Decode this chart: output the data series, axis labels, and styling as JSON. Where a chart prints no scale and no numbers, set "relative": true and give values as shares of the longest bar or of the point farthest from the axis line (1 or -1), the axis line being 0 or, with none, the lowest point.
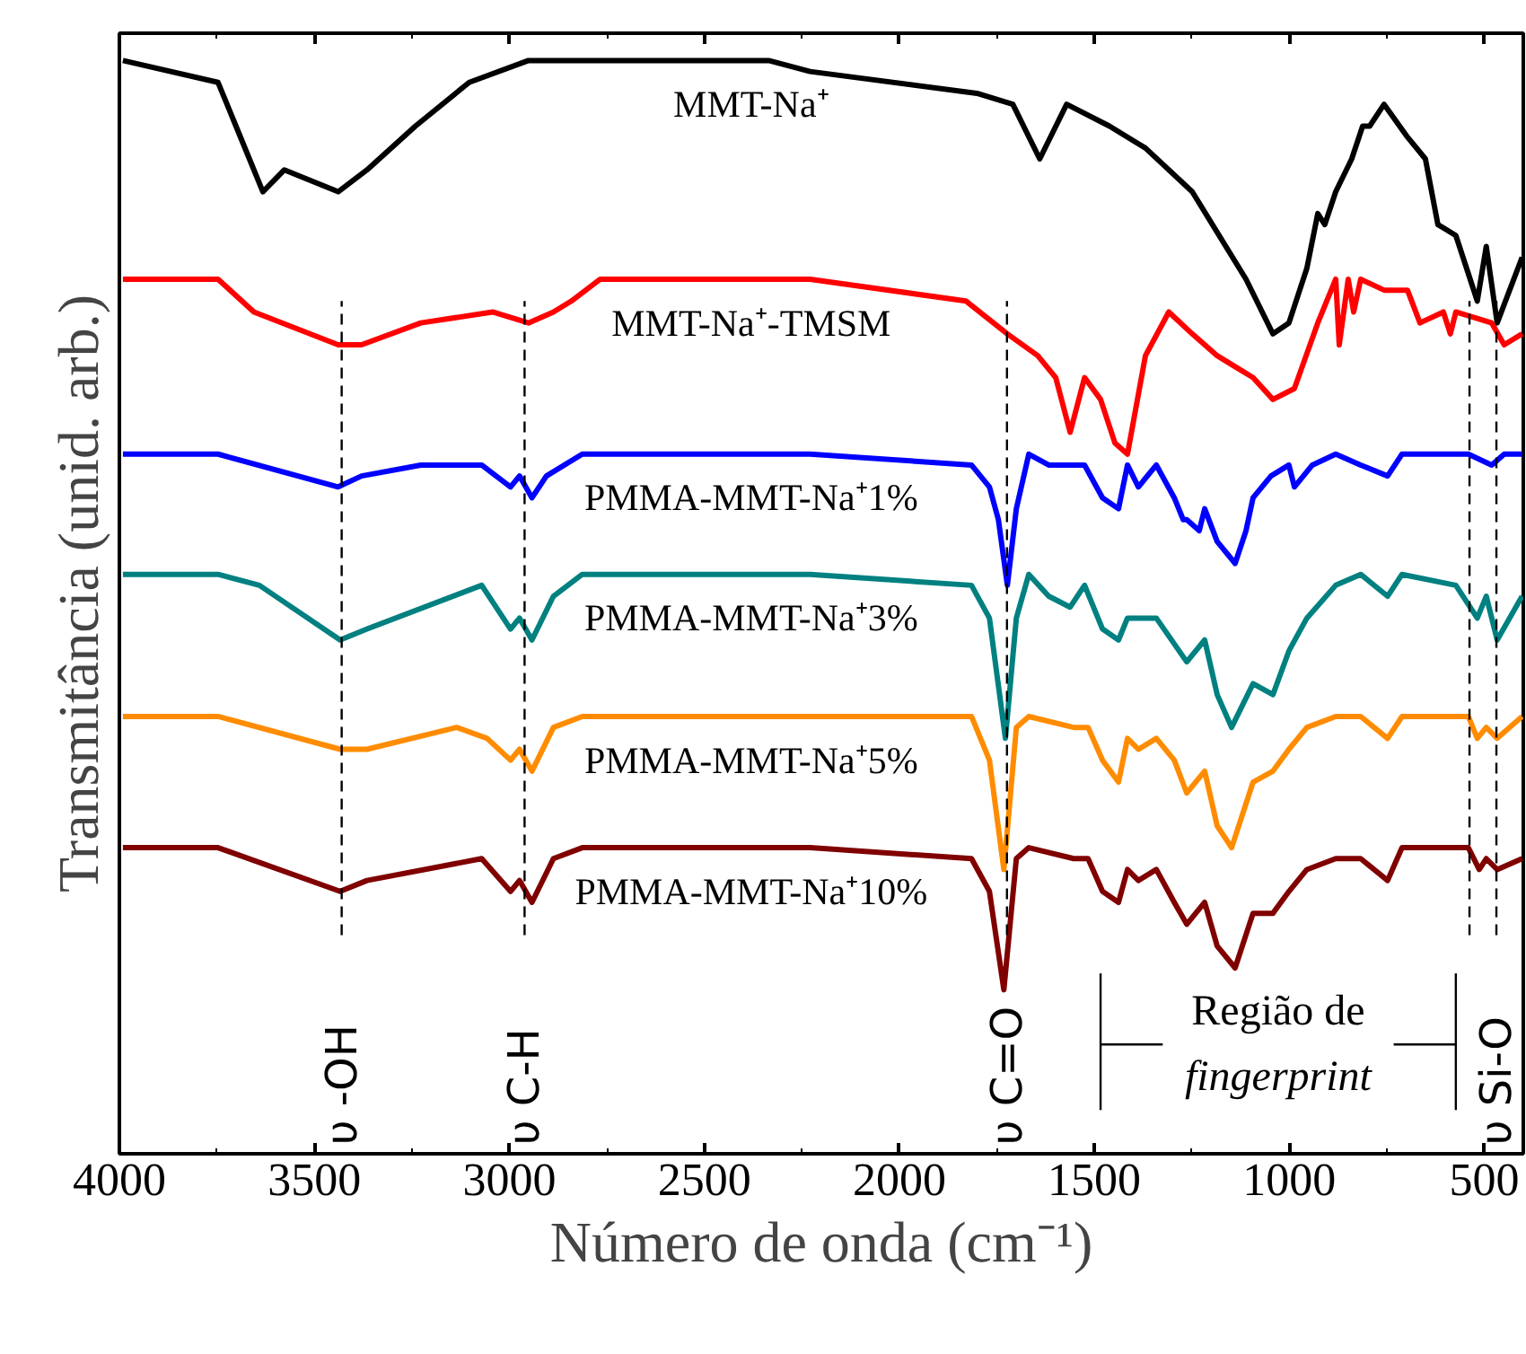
{
  "chart_data": {
    "type": "line",
    "relative": true,
    "xlabel": "Número de onda (cm⁻¹)",
    "ylabel": "Transmitância (unid. arb.)",
    "xlim": [
      4000,
      400
    ],
    "xticks": [
      4000,
      3500,
      3000,
      2500,
      2000,
      1500,
      1000,
      500
    ],
    "grid": false,
    "line_style": "solid",
    "marker": "none",
    "series": [
      {
        "name": "MMT-Na⁺",
        "color": "#000000",
        "x": [
          3991,
          3747,
          3701,
          3632,
          3577,
          3439,
          3365,
          3241,
          3103,
          2951,
          2643,
          2335,
          2229,
          1801,
          1709,
          1640,
          1571,
          1461,
          1369,
          1249,
          1111,
          1042,
          1001,
          955,
          927,
          909,
          881,
          840,
          812,
          794,
          757,
          697,
          651,
          619,
          573,
          518,
          495,
          467,
          403
        ],
        "values": [
          1.0,
          0.98,
          0.94,
          0.88,
          0.9,
          0.88,
          0.9,
          0.94,
          0.98,
          1.0,
          1.0,
          1.0,
          0.99,
          0.97,
          0.96,
          0.91,
          0.96,
          0.94,
          0.92,
          0.88,
          0.8,
          0.75,
          0.76,
          0.81,
          0.86,
          0.85,
          0.88,
          0.91,
          0.94,
          0.94,
          0.96,
          0.93,
          0.91,
          0.85,
          0.84,
          0.78,
          0.83,
          0.76,
          0.82
        ]
      },
      {
        "name": "MMT-Na⁺-TMSM",
        "color": "#ff0000",
        "x": [
          3991,
          3747,
          3655,
          3439,
          3379,
          3227,
          3043,
          2951,
          2887,
          2841,
          2767,
          2491,
          2229,
          1829,
          1723,
          1645,
          1599,
          1562,
          1525,
          1484,
          1447,
          1415,
          1369,
          1309,
          1249,
          1185,
          1139,
          1093,
          1042,
          987,
          927,
          881,
          872,
          849,
          835,
          817,
          757,
          697,
          665,
          605,
          587,
          573,
          481,
          449,
          403
        ],
        "values": [
          0.8,
          0.8,
          0.77,
          0.74,
          0.74,
          0.76,
          0.77,
          0.76,
          0.77,
          0.78,
          0.8,
          0.8,
          0.8,
          0.78,
          0.75,
          0.73,
          0.71,
          0.66,
          0.71,
          0.69,
          0.65,
          0.64,
          0.73,
          0.77,
          0.75,
          0.73,
          0.72,
          0.71,
          0.69,
          0.7,
          0.76,
          0.8,
          0.74,
          0.8,
          0.77,
          0.8,
          0.79,
          0.79,
          0.76,
          0.77,
          0.75,
          0.77,
          0.76,
          0.74,
          0.75
        ]
      },
      {
        "name": "PMMA-MMT-Na⁺1%",
        "color": "#0000ff",
        "x": [
          3991,
          3747,
          3439,
          3379,
          3227,
          3071,
          2997,
          2974,
          2942,
          2905,
          2813,
          2229,
          1815,
          1769,
          1746,
          1723,
          1700,
          1668,
          1617,
          1525,
          1479,
          1438,
          1415,
          1387,
          1341,
          1295,
          1272,
          1263,
          1231,
          1217,
          1185,
          1139,
          1111,
          1093,
          1047,
          1001,
          987,
          941,
          881,
          817,
          748,
          711,
          541,
          481,
          449,
          403
        ],
        "values": [
          0.64,
          0.64,
          0.61,
          0.62,
          0.63,
          0.63,
          0.61,
          0.62,
          0.6,
          0.62,
          0.64,
          0.64,
          0.63,
          0.61,
          0.58,
          0.52,
          0.59,
          0.64,
          0.63,
          0.63,
          0.6,
          0.59,
          0.63,
          0.61,
          0.63,
          0.6,
          0.58,
          0.58,
          0.57,
          0.59,
          0.56,
          0.54,
          0.57,
          0.6,
          0.62,
          0.63,
          0.61,
          0.63,
          0.64,
          0.63,
          0.62,
          0.64,
          0.64,
          0.63,
          0.64,
          0.64
        ]
      },
      {
        "name": "PMMA-MMT-Na⁺3%",
        "color": "#008080",
        "x": [
          3991,
          3747,
          3641,
          3434,
          3365,
          3071,
          2997,
          2974,
          2942,
          2887,
          2813,
          2229,
          1815,
          1769,
          1728,
          1700,
          1668,
          1617,
          1562,
          1525,
          1479,
          1438,
          1415,
          1341,
          1263,
          1217,
          1185,
          1148,
          1093,
          1042,
          1001,
          955,
          881,
          817,
          748,
          711,
          573,
          518,
          495,
          467,
          403
        ],
        "values": [
          0.53,
          0.53,
          0.52,
          0.47,
          0.48,
          0.52,
          0.48,
          0.49,
          0.47,
          0.51,
          0.53,
          0.53,
          0.52,
          0.49,
          0.38,
          0.49,
          0.53,
          0.51,
          0.5,
          0.52,
          0.48,
          0.47,
          0.49,
          0.49,
          0.45,
          0.47,
          0.42,
          0.39,
          0.43,
          0.42,
          0.46,
          0.49,
          0.52,
          0.53,
          0.51,
          0.53,
          0.52,
          0.49,
          0.51,
          0.47,
          0.51
        ]
      },
      {
        "name": "PMMA-MMT-Na⁺5%",
        "color": "#ff8c00",
        "x": [
          3991,
          3747,
          3434,
          3365,
          3135,
          3057,
          2997,
          2974,
          2942,
          2887,
          2813,
          2229,
          1815,
          1769,
          1732,
          1700,
          1668,
          1553,
          1516,
          1479,
          1438,
          1415,
          1387,
          1341,
          1295,
          1263,
          1217,
          1185,
          1148,
          1093,
          1042,
          1001,
          955,
          881,
          817,
          748,
          711,
          541,
          518,
          495,
          467,
          403
        ],
        "values": [
          0.4,
          0.4,
          0.37,
          0.37,
          0.39,
          0.38,
          0.36,
          0.37,
          0.35,
          0.39,
          0.4,
          0.4,
          0.4,
          0.36,
          0.26,
          0.39,
          0.4,
          0.39,
          0.39,
          0.36,
          0.34,
          0.38,
          0.37,
          0.38,
          0.36,
          0.33,
          0.35,
          0.3,
          0.28,
          0.34,
          0.35,
          0.37,
          0.39,
          0.4,
          0.4,
          0.38,
          0.4,
          0.4,
          0.38,
          0.39,
          0.38,
          0.4
        ]
      },
      {
        "name": "PMMA-MMT-Na⁺10%",
        "color": "#800000",
        "x": [
          3991,
          3747,
          3434,
          3365,
          3071,
          2997,
          2974,
          2942,
          2887,
          2813,
          2229,
          1815,
          1769,
          1732,
          1700,
          1668,
          1553,
          1516,
          1479,
          1438,
          1415,
          1387,
          1341,
          1295,
          1263,
          1217,
          1185,
          1139,
          1093,
          1042,
          1001,
          955,
          881,
          817,
          748,
          711,
          541,
          513,
          495,
          467,
          403
        ],
        "values": [
          0.28,
          0.28,
          0.24,
          0.25,
          0.27,
          0.24,
          0.25,
          0.23,
          0.27,
          0.28,
          0.28,
          0.27,
          0.24,
          0.15,
          0.27,
          0.28,
          0.27,
          0.27,
          0.24,
          0.23,
          0.26,
          0.25,
          0.26,
          0.23,
          0.21,
          0.23,
          0.19,
          0.17,
          0.22,
          0.22,
          0.24,
          0.26,
          0.27,
          0.27,
          0.25,
          0.28,
          0.28,
          0.26,
          0.27,
          0.26,
          0.27
        ]
      }
    ],
    "ref_lines": [
      {
        "axis": "x",
        "value": 3430,
        "label": "υ -OH",
        "color": "#000000",
        "line_style": "dashed"
      },
      {
        "axis": "x",
        "value": 2961,
        "label": "υ C-H",
        "color": "#000000",
        "line_style": "dashed"
      },
      {
        "axis": "x",
        "value": 1724,
        "label": "υ C=O",
        "color": "#000000",
        "line_style": "dashed"
      },
      {
        "axis": "x",
        "value": 538,
        "label": null,
        "color": "#000000",
        "line_style": "dashed"
      },
      {
        "axis": "x",
        "value": 469,
        "label": "υ Si-O",
        "color": "#000000",
        "line_style": "dashed"
      },
      {
        "axis": "x",
        "value": 1484,
        "label": null,
        "color": "#000000",
        "line_style": "solid"
      },
      {
        "axis": "x",
        "value": 573,
        "label": null,
        "color": "#000000",
        "line_style": "solid"
      }
    ],
    "annotations": [
      "Região de fingerprint"
    ]
  }
}
